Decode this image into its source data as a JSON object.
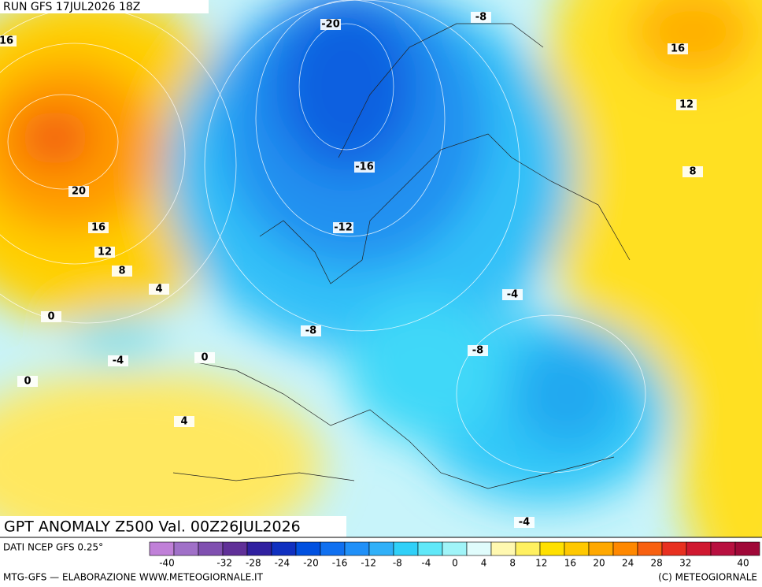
{
  "header": {
    "run": "RUN GFS 17JUL2026 18Z"
  },
  "map": {
    "title": "GPT ANOMALY Z500 Val. 00Z26JUL2026",
    "contour_labels": [
      16,
      -20,
      -8,
      16,
      12,
      8,
      20,
      16,
      12,
      8,
      4,
      0,
      -16,
      -12,
      -4,
      -8,
      -8,
      -4,
      0,
      0,
      4,
      -4
    ]
  },
  "footer": {
    "source": "DATI NCEP GFS 0.25°",
    "credit": "MTG-GFS — ELABORAZIONE WWW.METEOGIORNALE.IT",
    "copyright": "(C) METEOGIORNALE"
  },
  "legend": {
    "ticks": [
      -40,
      -32,
      -28,
      -24,
      -20,
      -16,
      -12,
      -8,
      -4,
      0,
      4,
      8,
      12,
      16,
      20,
      24,
      28,
      32,
      40
    ],
    "colors": [
      "#c080d8",
      "#a070c8",
      "#8050b0",
      "#603098",
      "#3020a0",
      "#1030c0",
      "#0050e0",
      "#1070f0",
      "#2090f8",
      "#30b0f8",
      "#30d0f8",
      "#60e8f8",
      "#a0f4f8",
      "#e0fcfc",
      "#fff8b0",
      "#fff060",
      "#ffe000",
      "#ffc800",
      "#ffa800",
      "#ff8800",
      "#f86010",
      "#e83020",
      "#d01830",
      "#b81040",
      "#a00838"
    ]
  }
}
